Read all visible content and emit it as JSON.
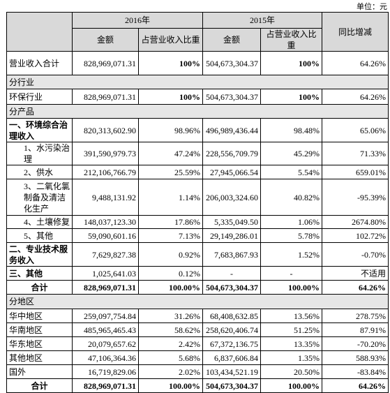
{
  "unit": "单位：元",
  "header": {
    "top": [
      "2016年",
      "2015年",
      "同比增减"
    ],
    "sub": [
      "金额",
      "占营业收入比重",
      "金额",
      "占营业收入比重"
    ]
  },
  "rows": [
    [
      "营业收入合计",
      "828,969,071.31",
      "100%",
      "504,673,304.37",
      "100%",
      "64.26%"
    ],
    {
      "section": "分行业"
    },
    [
      "环保行业",
      "828,969,071.31",
      "100%",
      "504,673,304.37",
      "100%",
      "64.26%"
    ],
    {
      "section": "分产品"
    },
    [
      "一、环境综合治理收入",
      "820,313,602.90",
      "98.96%",
      "496,989,436.44",
      "98.48%",
      "65.06%"
    ],
    [
      "1、水污染治理",
      "391,590,979.73",
      "47.24%",
      "228,556,709.79",
      "45.29%",
      "71.33%"
    ],
    [
      "2、供水",
      "212,106,766.79",
      "25.59%",
      "27,945,066.54",
      "5.54%",
      "659.01%"
    ],
    [
      "3、二氧化氯制备及清洁化生产",
      "9,488,131.92",
      "1.14%",
      "206,003,324.60",
      "40.82%",
      "-95.39%"
    ],
    [
      "4、土壤修复",
      "148,037,123.30",
      "17.86%",
      "5,335,049.50",
      "1.06%",
      "2674.80%"
    ],
    [
      "5、其他",
      "59,090,601.16",
      "7.13%",
      "29,149,286.01",
      "5.78%",
      "102.72%"
    ],
    [
      "二、专业技术服务收入",
      "7,629,827.38",
      "0.92%",
      "7,683,867.93",
      "1.52%",
      "-0.70%"
    ],
    [
      "三、其他",
      "1,025,641.03",
      "0.12%",
      "-",
      "-",
      "不适用"
    ],
    [
      "合计",
      "828,969,071.31",
      "100.00%",
      "504,673,304.37",
      "100.00%",
      "64.26%"
    ],
    {
      "section": "分地区"
    },
    [
      "华中地区",
      "259,097,754.84",
      "31.26%",
      "68,408,632.85",
      "13.56%",
      "278.75%"
    ],
    [
      "华南地区",
      "485,965,465.43",
      "58.62%",
      "258,620,406.74",
      "51.25%",
      "87.91%"
    ],
    [
      "华东地区",
      "20,079,657.62",
      "2.42%",
      "67,372,136.75",
      "13.35%",
      "-70.20%"
    ],
    [
      "其他地区",
      "47,106,364.36",
      "5.68%",
      "6,837,606.84",
      "1.35%",
      "588.93%"
    ],
    [
      "国外",
      "16,719,829.06",
      "2.02%",
      "103,434,521.19",
      "20.50%",
      "-83.84%"
    ],
    [
      "合计",
      "828,969,071.31",
      "100.00%",
      "504,673,304.37",
      "100.00%",
      "64.26%"
    ]
  ]
}
